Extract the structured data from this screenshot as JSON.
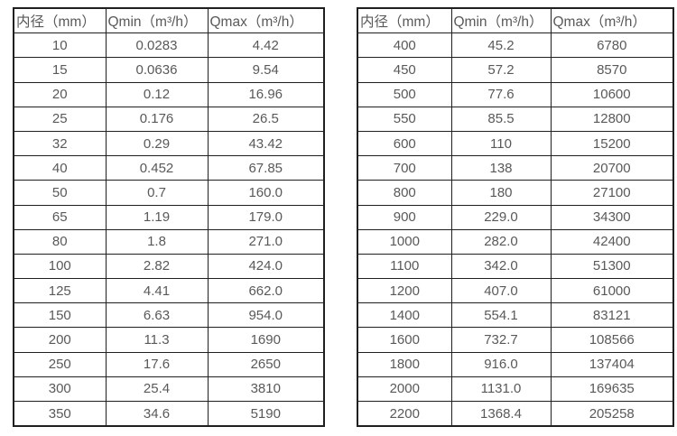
{
  "style": {
    "border_color": "#1f1f1f",
    "text_color": "#595959",
    "background_color": "#ffffff"
  },
  "tables": {
    "left": {
      "title": "flow-range-table-dn10-350",
      "headers": [
        "内径（mm）",
        "Qmin（m³/h）",
        "Qmax（m³/h）"
      ],
      "rows": [
        [
          "10",
          "0.0283",
          "4.42"
        ],
        [
          "15",
          "0.0636",
          "9.54"
        ],
        [
          "20",
          "0.12",
          "16.96"
        ],
        [
          "25",
          "0.176",
          "26.5"
        ],
        [
          "32",
          "0.29",
          "43.42"
        ],
        [
          "40",
          "0.452",
          "67.85"
        ],
        [
          "50",
          "0.7",
          "160.0"
        ],
        [
          "65",
          "1.19",
          "179.0"
        ],
        [
          "80",
          "1.8",
          "271.0"
        ],
        [
          "100",
          "2.82",
          "424.0"
        ],
        [
          "125",
          "4.41",
          "662.0"
        ],
        [
          "150",
          "6.63",
          "954.0"
        ],
        [
          "200",
          "11.3",
          "1690"
        ],
        [
          "250",
          "17.6",
          "2650"
        ],
        [
          "300",
          "25.4",
          "3810"
        ],
        [
          "350",
          "34.6",
          "5190"
        ]
      ]
    },
    "right": {
      "title": "flow-range-table-dn400-2200",
      "headers": [
        "内径（mm）",
        "Qmin（m³/h）",
        "Qmax（m³/h）"
      ],
      "rows": [
        [
          "400",
          "45.2",
          "6780"
        ],
        [
          "450",
          "57.2",
          "8570"
        ],
        [
          "500",
          "77.6",
          "10600"
        ],
        [
          "550",
          "85.5",
          "12800"
        ],
        [
          "600",
          "110",
          "15200"
        ],
        [
          "700",
          "138",
          "20700"
        ],
        [
          "800",
          "180",
          "27100"
        ],
        [
          "900",
          "229.0",
          "34300"
        ],
        [
          "1000",
          "282.0",
          "42400"
        ],
        [
          "1100",
          "342.0",
          "51300"
        ],
        [
          "1200",
          "407.0",
          "61000"
        ],
        [
          "1400",
          "554.1",
          "83121"
        ],
        [
          "1600",
          "732.7",
          "108566"
        ],
        [
          "1800",
          "916.0",
          "137404"
        ],
        [
          "2000",
          "1131.0",
          "169635"
        ],
        [
          "2200",
          "1368.4",
          "205258"
        ]
      ]
    }
  }
}
